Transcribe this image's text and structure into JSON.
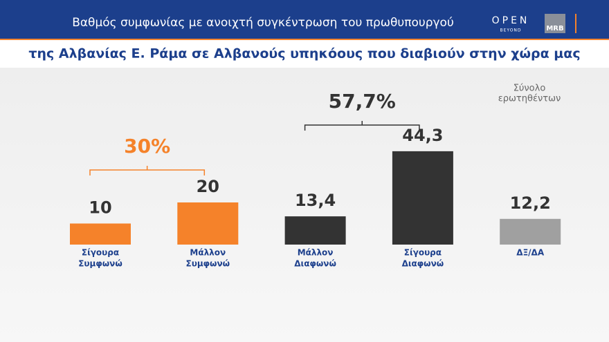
{
  "header": {
    "title": "Βαθμός συμφωνίας με ανοιχτή συγκέντρωση του πρωθυπουργού",
    "logos": [
      "OPEN",
      "BEYOND",
      "MRB"
    ]
  },
  "chart_data": {
    "type": "bar",
    "title": "της Αλβανίας Ε. Ράμα σε Αλβανούς υπηκόους που διαβιούν στην χώρα μας",
    "note": [
      "Σύνολο",
      "ερωτηθέντων"
    ],
    "categories": [
      [
        "Σίγουρα",
        "Συμφωνώ"
      ],
      [
        "Μάλλον",
        "Συμφωνώ"
      ],
      [
        "Μάλλον",
        "Διαφωνώ"
      ],
      [
        "Σίγουρα",
        "Διαφωνώ"
      ],
      [
        "ΔΞ/ΔΑ"
      ]
    ],
    "values": [
      10,
      20,
      13.4,
      44.3,
      12.2
    ],
    "value_labels": [
      "10",
      "20",
      "13,4",
      "44,3",
      "12,2"
    ],
    "colors": [
      "#f5822a",
      "#f5822a",
      "#333333",
      "#333333",
      "#a0a0a0"
    ],
    "brackets": [
      {
        "label": "30%",
        "color": "#f5822a"
      },
      {
        "label": "57,7%",
        "color": "#333333"
      }
    ]
  }
}
